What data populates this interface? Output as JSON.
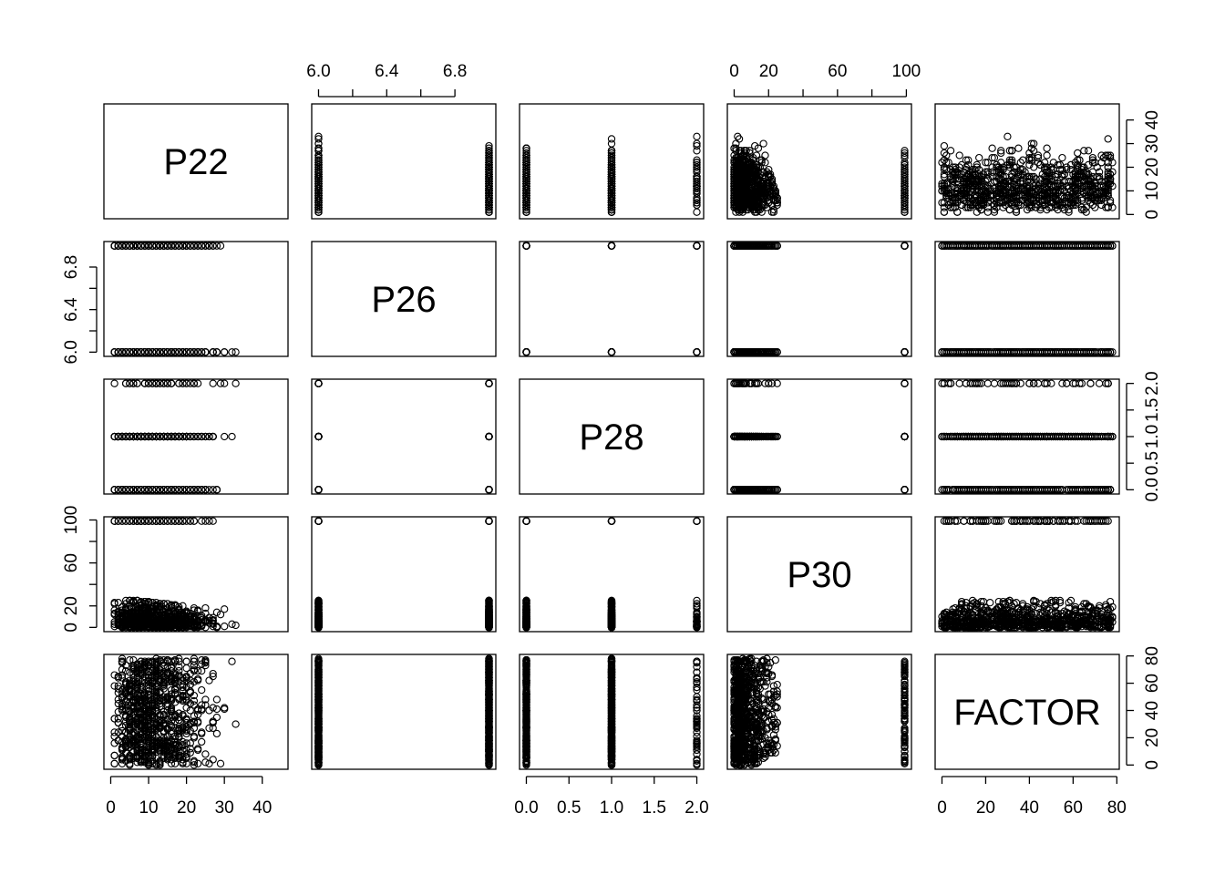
{
  "chart_data": {
    "type": "scatter",
    "layout": "scatterplot-matrix",
    "variables": [
      {
        "name": "P22",
        "ticks": [
          0,
          10,
          20,
          30,
          40
        ],
        "tick_labels": [
          "0",
          "10",
          "20",
          "30",
          "40"
        ],
        "axis_range": [
          0,
          45
        ]
      },
      {
        "name": "P26",
        "ticks": [
          6.0,
          6.2,
          6.4,
          6.6,
          6.8
        ],
        "tick_labels": [
          "6.0",
          "",
          "6.4",
          "",
          "6.8"
        ],
        "axis_range": [
          6,
          7
        ]
      },
      {
        "name": "P28",
        "ticks": [
          0.0,
          0.5,
          1.0,
          1.5,
          2.0
        ],
        "tick_labels": [
          "0.0",
          "0.5",
          "1.0",
          "1.5",
          "2.0"
        ],
        "axis_range": [
          0,
          2
        ]
      },
      {
        "name": "P30",
        "ticks": [
          0,
          20,
          40,
          60,
          80,
          100
        ],
        "tick_labels": [
          "0",
          "20",
          "",
          "60",
          "",
          "100"
        ],
        "axis_range": [
          0,
          99
        ]
      },
      {
        "name": "FACTOR",
        "ticks": [
          0,
          20,
          40,
          60,
          80
        ],
        "tick_labels": [
          "0",
          "20",
          "40",
          "60",
          "80"
        ],
        "axis_range": [
          0,
          78
        ]
      }
    ],
    "observations": {
      "P22_range": [
        0,
        45
      ],
      "P26_values": [
        6,
        7
      ],
      "P28_values": [
        0,
        1,
        2
      ],
      "P30": {
        "typical_range": [
          0,
          27
        ],
        "outlier_value": 99
      },
      "FACTOR_range": [
        0,
        78
      ]
    }
  }
}
